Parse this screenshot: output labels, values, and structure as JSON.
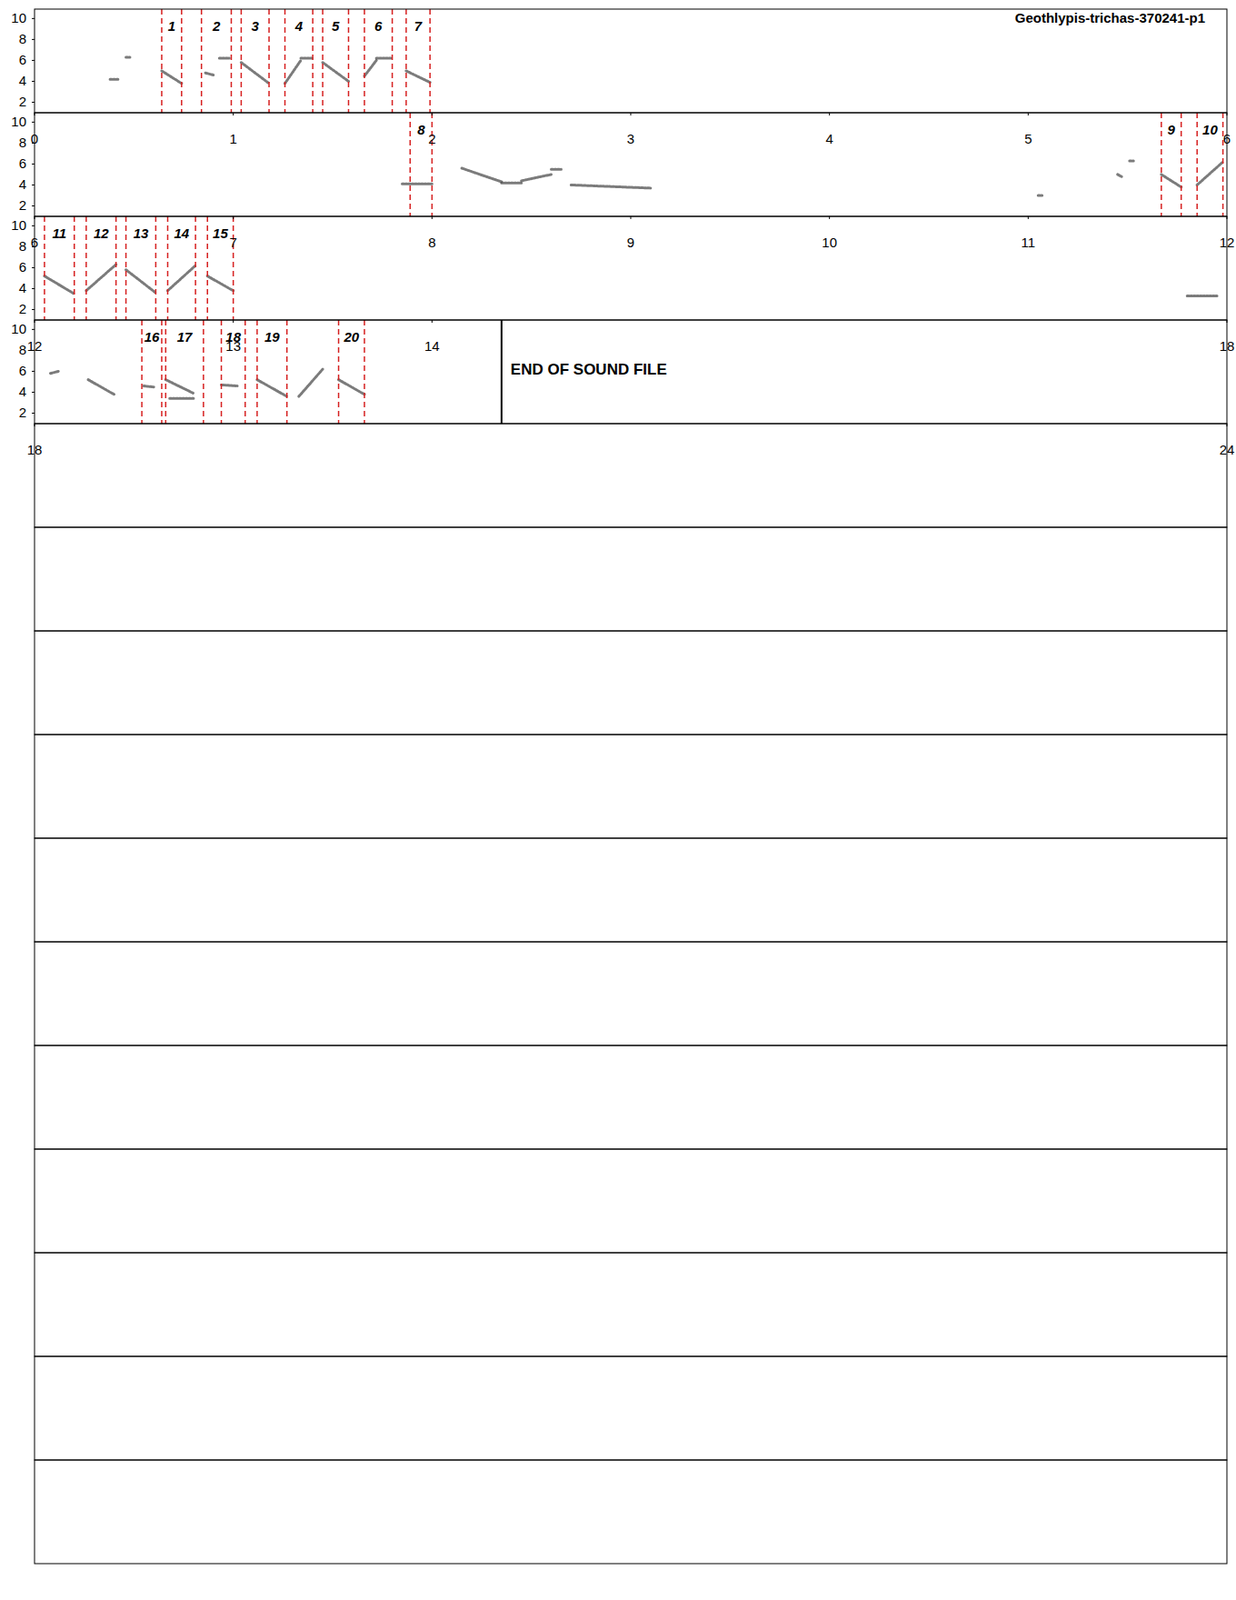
{
  "chart_data": {
    "type": "spectrogram",
    "title": "Geothlypis-trichas-370241-p1",
    "ylim": [
      1,
      10.9
    ],
    "yticks": [
      2,
      4,
      6,
      8,
      10
    ],
    "rows": [
      {
        "xlim": [
          0,
          6
        ],
        "xticks": [
          0,
          1,
          2,
          3,
          4,
          5,
          6
        ]
      },
      {
        "xlim": [
          6,
          12
        ],
        "xticks": [
          6,
          7,
          8,
          9,
          10,
          11,
          12
        ]
      },
      {
        "xlim": [
          12,
          18
        ],
        "xticks": [
          12,
          13,
          14,
          18
        ]
      },
      {
        "xlim": [
          18,
          24
        ],
        "xticks": [
          18,
          24
        ]
      },
      {
        "xlim": [
          24,
          30
        ],
        "tick_labels": false
      },
      {
        "xlim": [
          30,
          36
        ],
        "tick_labels": false
      },
      {
        "xlim": [
          36,
          42
        ],
        "tick_labels": false
      },
      {
        "xlim": [
          42,
          48
        ],
        "tick_labels": false
      },
      {
        "xlim": [
          48,
          54
        ],
        "tick_labels": false
      },
      {
        "xlim": [
          54,
          60
        ],
        "tick_labels": false
      },
      {
        "xlim": [
          60,
          66
        ],
        "tick_labels": false
      },
      {
        "xlim": [
          66,
          72
        ],
        "tick_labels": false
      },
      {
        "xlim": [
          72,
          78
        ],
        "tick_labels": false
      },
      {
        "xlim": [
          78,
          84
        ],
        "tick_labels": false
      },
      {
        "xlim": [
          84,
          90
        ],
        "tick_labels": false
      }
    ],
    "segments": [
      {
        "label": "1",
        "start": 0.64,
        "end": 0.74
      },
      {
        "label": "2",
        "start": 0.84,
        "end": 0.99
      },
      {
        "label": "3",
        "start": 1.04,
        "end": 1.18
      },
      {
        "label": "4",
        "start": 1.26,
        "end": 1.4
      },
      {
        "label": "5",
        "start": 1.45,
        "end": 1.58
      },
      {
        "label": "6",
        "start": 1.66,
        "end": 1.8
      },
      {
        "label": "7",
        "start": 1.87,
        "end": 1.99
      },
      {
        "label": "8",
        "start": 7.89,
        "end": 8.0
      },
      {
        "label": "9",
        "start": 11.67,
        "end": 11.77
      },
      {
        "label": "10",
        "start": 11.85,
        "end": 11.98
      },
      {
        "label": "11",
        "start": 12.05,
        "end": 12.2
      },
      {
        "label": "12",
        "start": 12.26,
        "end": 12.41
      },
      {
        "label": "13",
        "start": 12.46,
        "end": 12.61
      },
      {
        "label": "14",
        "start": 12.67,
        "end": 12.81
      },
      {
        "label": "15",
        "start": 12.87,
        "end": 13.0
      },
      {
        "label": "16",
        "start": 18.54,
        "end": 18.64
      },
      {
        "label": "17",
        "start": 18.66,
        "end": 18.85
      },
      {
        "label": "18",
        "start": 18.94,
        "end": 19.06
      },
      {
        "label": "19",
        "start": 19.12,
        "end": 19.27
      },
      {
        "label": "20",
        "start": 19.53,
        "end": 19.66
      }
    ],
    "traces": [
      [
        0.38,
        4.2,
        0.42,
        4.2
      ],
      [
        0.46,
        6.3,
        0.48,
        6.3
      ],
      [
        0.64,
        5.0,
        0.74,
        3.8
      ],
      [
        0.86,
        4.8,
        0.9,
        4.6
      ],
      [
        0.93,
        6.2,
        0.98,
        6.2
      ],
      [
        1.04,
        5.8,
        1.18,
        3.8
      ],
      [
        1.26,
        3.8,
        1.34,
        6.0
      ],
      [
        1.34,
        6.2,
        1.4,
        6.2
      ],
      [
        1.45,
        5.8,
        1.58,
        4.0
      ],
      [
        1.66,
        4.5,
        1.72,
        6.0
      ],
      [
        1.72,
        6.2,
        1.8,
        6.2
      ],
      [
        1.87,
        5.0,
        1.99,
        3.9
      ],
      [
        7.85,
        4.1,
        8.0,
        4.1
      ],
      [
        8.15,
        5.6,
        8.35,
        4.3
      ],
      [
        8.35,
        4.2,
        8.45,
        4.2
      ],
      [
        8.45,
        4.4,
        8.6,
        5.0
      ],
      [
        8.6,
        5.5,
        8.65,
        5.5
      ],
      [
        8.7,
        4.0,
        9.1,
        3.7
      ],
      [
        11.05,
        3.0,
        11.07,
        3.0
      ],
      [
        11.45,
        5.0,
        11.47,
        4.8
      ],
      [
        11.51,
        6.3,
        11.53,
        6.3
      ],
      [
        11.67,
        5.0,
        11.77,
        3.8
      ],
      [
        11.85,
        4.0,
        11.98,
        6.2
      ],
      [
        12.05,
        5.2,
        12.2,
        3.5
      ],
      [
        12.26,
        3.8,
        12.41,
        6.3
      ],
      [
        12.46,
        5.8,
        12.61,
        3.6
      ],
      [
        12.67,
        3.8,
        12.81,
        6.2
      ],
      [
        12.87,
        5.2,
        13.0,
        3.8
      ],
      [
        17.8,
        3.3,
        17.95,
        3.3
      ],
      [
        18.08,
        5.8,
        18.12,
        6.0
      ],
      [
        18.27,
        5.2,
        18.4,
        3.8
      ],
      [
        18.55,
        4.6,
        18.6,
        4.5
      ],
      [
        18.66,
        5.2,
        18.8,
        3.9
      ],
      [
        18.68,
        3.4,
        18.8,
        3.4
      ],
      [
        18.94,
        4.7,
        19.02,
        4.6
      ],
      [
        19.12,
        5.2,
        19.27,
        3.6
      ],
      [
        19.33,
        3.6,
        19.45,
        6.2
      ],
      [
        19.53,
        5.2,
        19.66,
        3.8
      ]
    ],
    "end_time": 20.35,
    "end_label": "END OF SOUND FILE"
  }
}
